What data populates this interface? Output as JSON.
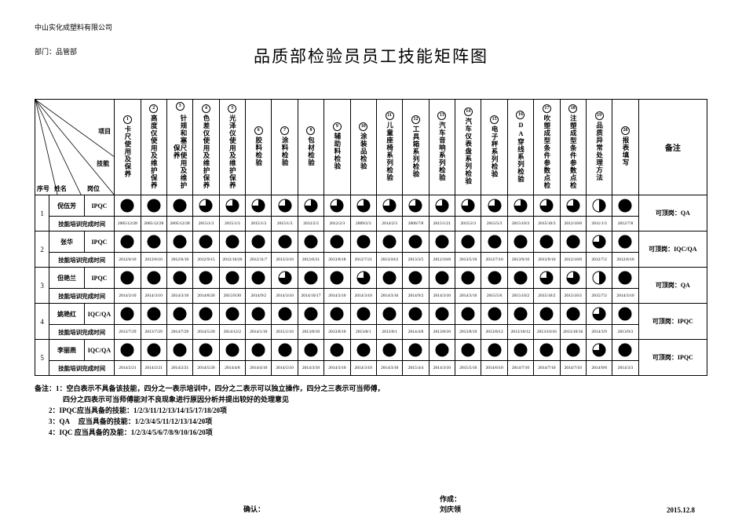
{
  "company": "中山实化成塑料有限公司",
  "dept": "部门：品管部",
  "title": "品质部检验员员工技能矩阵图",
  "head_remark": "备注",
  "diag_labels": {
    "proj": "项目",
    "skill": "技能",
    "seq": "序号",
    "name": "姓名",
    "pos": "岗位"
  },
  "skills": [
    {
      "n": "1",
      "t": "卡尺使用及保养"
    },
    {
      "n": "2",
      "t": "高度仪使用及维护保养"
    },
    {
      "n": "3",
      "t": "针规和塞尺使用及维护保养"
    },
    {
      "n": "4",
      "t": "色差仪使用及维护保养"
    },
    {
      "n": "5",
      "t": "光泽仪使用及维护保养"
    },
    {
      "n": "6",
      "t": "胶料检验"
    },
    {
      "n": "7",
      "t": "涂料检验"
    },
    {
      "n": "8",
      "t": "包材检验"
    },
    {
      "n": "9",
      "t": "辅助料检验"
    },
    {
      "n": "10",
      "t": "涂装品检验"
    },
    {
      "n": "11",
      "t": "儿童座椅系列检验"
    },
    {
      "n": "12",
      "t": "工具箱系列检验"
    },
    {
      "n": "13",
      "t": "汽车音响系列检验"
    },
    {
      "n": "14",
      "t": "汽车仪表盘系列检验"
    },
    {
      "n": "15",
      "t": "电子秤系列检验"
    },
    {
      "n": "16",
      "t": "DA穿线系列检验"
    },
    {
      "n": "17",
      "t": "吹塑成型条件参数点检"
    },
    {
      "n": "18",
      "t": "注塑成型条件参数点检"
    },
    {
      "n": "19",
      "t": "品质异常处理方法"
    },
    {
      "n": "20",
      "t": "报表填写"
    }
  ],
  "rows": [
    {
      "seq": "1",
      "name": "倪伍芳",
      "pos": "IPQC",
      "train": "技能培训完成时间",
      "remark": "可顶岗：QA",
      "lv": [
        4,
        4,
        4,
        3,
        3,
        3,
        3,
        3,
        3,
        3,
        3,
        3,
        3,
        3,
        3,
        3,
        3,
        3,
        2,
        4
      ],
      "dt": [
        "2005/12/28",
        "2005/12/28",
        "2005/12/28",
        "2015/1/3",
        "2015/1/3",
        "2015/1/3",
        "2015/1/3",
        "2012/2/3",
        "2012/2/3",
        "2009/2/3",
        "2014/2/3",
        "2006/7/8",
        "2015/1/21",
        "2015/2/3",
        "2015/5/3",
        "2015/10/3",
        "2015/10/3",
        "2012/10/8",
        "2011/1/3",
        "2012/7/8"
      ]
    },
    {
      "seq": "2",
      "name": "张华",
      "pos": "IPQC",
      "train": "技能培训完成时间",
      "remark": "可顶岗：IQC/QA",
      "lv": [
        4,
        4,
        4,
        4,
        4,
        4,
        4,
        4,
        4,
        4,
        4,
        4,
        4,
        4,
        4,
        4,
        4,
        4,
        3,
        4
      ],
      "dt": [
        "2012/6/10",
        "2012/6/10",
        "2012/6/10",
        "2012/9/15",
        "2012/10/20",
        "2012/11/7",
        "2013/3/10",
        "2012/6/21",
        "2013/8/18",
        "2012/7/21",
        "2013/10/2",
        "2013/3/5",
        "2012/10/8",
        "2013/5/10",
        "2013/7/10",
        "2013/9/10",
        "2013/9/10",
        "2012/10/8",
        "2012/7/2",
        "2012/6/10"
      ]
    },
    {
      "seq": "3",
      "name": "但艳兰",
      "pos": "IPQC",
      "train": "技能培训完成时间",
      "remark": "可顶岗：QA",
      "lv": [
        4,
        4,
        4,
        4,
        4,
        4,
        3,
        4,
        4,
        3,
        4,
        4,
        4,
        4,
        4,
        4,
        3,
        3,
        2,
        4
      ],
      "dt": [
        "2014/3/10",
        "2014/3/10",
        "2014/3/10",
        "2014/8/20",
        "2015/9/30",
        "2014/9/2",
        "2014/3/10",
        "2014/10/17",
        "2014/3/10",
        "2014/3/10",
        "2014/3/16",
        "2014/9/2",
        "2014/3/10",
        "2014/3/10",
        "2015/5/6",
        "2015/10/2",
        "2015/10/2",
        "2015/10/2",
        "2015/7/2",
        "2014/3/10"
      ]
    },
    {
      "seq": "4",
      "name": "姚艳红",
      "pos": "IQC/QA",
      "train": "技能培训完成时间",
      "remark": "可顶岗：IPQC",
      "lv": [
        4,
        4,
        4,
        4,
        4,
        4,
        4,
        4,
        4,
        4,
        4,
        4,
        4,
        4,
        4,
        4,
        4,
        4,
        3,
        4
      ],
      "dt": [
        "2013/7/29",
        "2013/7/29",
        "2014/7/29",
        "2014/5/20",
        "2014/12/2",
        "2014/1/10",
        "2015/1/10",
        "2013/8/10",
        "2013/8/10",
        "2013/8/1",
        "2013/8/1",
        "2014/4/8",
        "2013/8/10",
        "2013/8/10",
        "2013/8/12",
        "2013/10/12",
        "2013/10/16",
        "2013/10/16",
        "2014/3/9",
        "2013/9/3"
      ]
    },
    {
      "seq": "5",
      "name": "李丽燕",
      "pos": "IQC/QA",
      "train": "技能培训完成时间",
      "remark": "可顶岗：IPQC",
      "lv": [
        4,
        4,
        4,
        4,
        4,
        4,
        4,
        4,
        4,
        4,
        4,
        4,
        4,
        4,
        4,
        4,
        4,
        4,
        3,
        4
      ],
      "dt": [
        "2014/2/21",
        "2014/2/21",
        "2014/2/21",
        "2014/5/20",
        "2014/4/8",
        "2014/4/10",
        "2014/5/10",
        "2014/3/10",
        "2014/3/10",
        "2014/3/10",
        "2014/3/10",
        "2015/4/4",
        "2014/3/10",
        "2015/5/10",
        "2014/6/10",
        "2014/7/10",
        "2014/7/10",
        "2014/7/10",
        "2014/9/8",
        "2014/3/3"
      ]
    }
  ],
  "notes": [
    "备注：1：空白表示不具备该技能，四分之一表示培训中，四分之二表示可以独立操作，四分之三表示可当师傅，",
    "　　　　四分之四表示可当师傅能对不良现象进行原因分析并提出较好的处理意见",
    "　　2：IPQC应当具备的技能：1/2/3/11/12/13/14/15/17/18/20项",
    "　　3：QA 　应当具备的技能：1/2/3/4/5/11/12/13/14/20项",
    "　　4：IQC 应当具备的及能：1/2/3/4/5/6/7/8/9/10/16/20项"
  ],
  "sign": {
    "confirm": "确认：",
    "author": "作成：",
    "author_name": "刘庆领",
    "date": "2015.12.8"
  }
}
